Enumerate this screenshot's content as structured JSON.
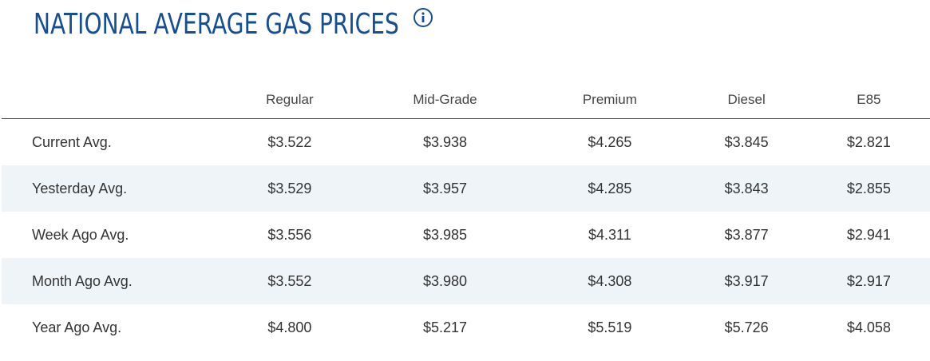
{
  "header": {
    "title": "NATIONAL AVERAGE GAS PRICES"
  },
  "table": {
    "columns": [
      "Regular",
      "Mid-Grade",
      "Premium",
      "Diesel",
      "E85"
    ],
    "rows": [
      [
        "Current Avg.",
        "$3.522",
        "$3.938",
        "$4.265",
        "$3.845",
        "$2.821"
      ],
      [
        "Yesterday Avg.",
        "$3.529",
        "$3.957",
        "$4.285",
        "$3.843",
        "$2.855"
      ],
      [
        "Week Ago Avg.",
        "$3.556",
        "$3.985",
        "$4.311",
        "$3.877",
        "$2.941"
      ],
      [
        "Month Ago Avg.",
        "$3.552",
        "$3.980",
        "$4.308",
        "$3.917",
        "$2.917"
      ],
      [
        "Year Ago Avg.",
        "$4.800",
        "$5.217",
        "$5.519",
        "$5.726",
        "$4.058"
      ]
    ]
  }
}
